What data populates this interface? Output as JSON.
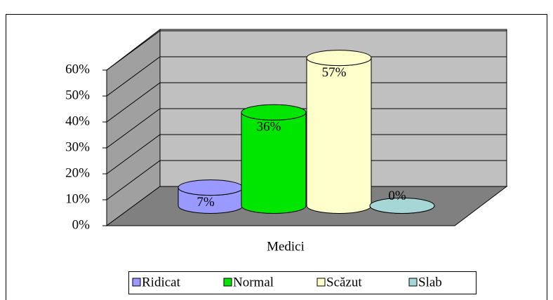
{
  "chart_data": {
    "type": "bar",
    "categories": [
      "Medici"
    ],
    "series": [
      {
        "name": "Ridicat",
        "color": "#9999ff",
        "values": [
          7
        ],
        "value_labels": [
          "7%"
        ]
      },
      {
        "name": "Normal",
        "color": "#00e600",
        "values": [
          36
        ],
        "value_labels": [
          "36%"
        ]
      },
      {
        "name": "Scăzut",
        "color": "#ffffcc",
        "values": [
          57
        ],
        "value_labels": [
          "57%"
        ]
      },
      {
        "name": "Slab",
        "color": "#a6d6d6",
        "values": [
          0
        ],
        "value_labels": [
          "0%"
        ]
      }
    ],
    "ylim": [
      0,
      60
    ],
    "yticks": [
      {
        "value": 0,
        "label": "0%"
      },
      {
        "value": 10,
        "label": "10%"
      },
      {
        "value": 20,
        "label": "20%"
      },
      {
        "value": 30,
        "label": "30%"
      },
      {
        "value": 40,
        "label": "40%"
      },
      {
        "value": 50,
        "label": "50%"
      },
      {
        "value": 60,
        "label": "60%"
      }
    ],
    "grid": true,
    "legend": "bottom"
  }
}
